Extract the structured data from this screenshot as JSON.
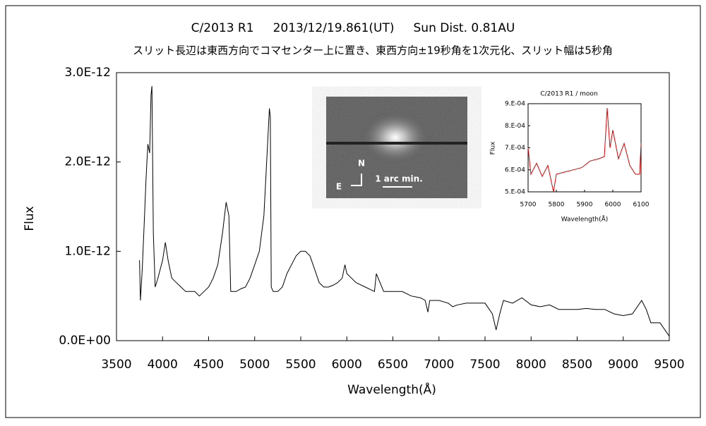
{
  "chart_data": [
    {
      "type": "line",
      "title": "C/2013 R1     2013/12/19.861(UT)     Sun Dist. 0.81AU",
      "subtitle": "スリット長辺は東西方向でコマセンター上に置き、東西方向±19秒角を1次元化、スリット幅は5秒角",
      "xlabel": "Wavelength(Å)",
      "ylabel": "Flux",
      "color": "#000000",
      "xlim": [
        3500,
        9500
      ],
      "xticks": [
        3500,
        4000,
        4500,
        5000,
        5500,
        6000,
        6500,
        7000,
        7500,
        8000,
        8500,
        9000,
        9500
      ],
      "ylim": [
        0,
        3e-12
      ],
      "yticks": [
        {
          "value": 0,
          "label": "0.0E+00"
        },
        {
          "value": 1e-12,
          "label": "1.0E-12"
        },
        {
          "value": 2e-12,
          "label": "2.0E-12"
        },
        {
          "value": 3e-12,
          "label": "3.0E-12"
        }
      ],
      "x": [
        3750,
        3760,
        3780,
        3800,
        3820,
        3840,
        3860,
        3875,
        3885,
        3900,
        3920,
        3950,
        4000,
        4030,
        4060,
        4100,
        4150,
        4200,
        4250,
        4300,
        4350,
        4400,
        4450,
        4500,
        4550,
        4600,
        4650,
        4690,
        4720,
        4740,
        4800,
        4850,
        4900,
        4950,
        5000,
        5050,
        5100,
        5130,
        5160,
        5170,
        5180,
        5200,
        5250,
        5300,
        5350,
        5400,
        5450,
        5500,
        5550,
        5600,
        5650,
        5700,
        5750,
        5800,
        5850,
        5900,
        5950,
        5980,
        6000,
        6050,
        6100,
        6200,
        6300,
        6320,
        6400,
        6500,
        6600,
        6700,
        6800,
        6850,
        6880,
        6900,
        7000,
        7100,
        7150,
        7200,
        7300,
        7400,
        7500,
        7580,
        7620,
        7660,
        7700,
        7800,
        7900,
        8000,
        8100,
        8200,
        8300,
        8400,
        8500,
        8600,
        8700,
        8800,
        8900,
        9000,
        9100,
        9200,
        9250,
        9300,
        9400,
        9500
      ],
      "values": [
        9e-13,
        4.5e-13,
        8e-13,
        1.3e-12,
        1.8e-12,
        2.2e-12,
        2.1e-12,
        2.75e-12,
        2.85e-12,
        1.2e-12,
        6e-13,
        7e-13,
        9e-13,
        1.1e-12,
        9e-13,
        7e-13,
        6.5e-13,
        6e-13,
        5.5e-13,
        5.5e-13,
        5.5e-13,
        5e-13,
        5.5e-13,
        6e-13,
        7e-13,
        8.5e-13,
        1.2e-12,
        1.55e-12,
        1.4e-12,
        5.5e-13,
        5.5e-13,
        5.8e-13,
        6e-13,
        7e-13,
        8.5e-13,
        1e-12,
        1.4e-12,
        2e-12,
        2.6e-12,
        2.5e-12,
        6e-13,
        5.5e-13,
        5.5e-13,
        6e-13,
        7.5e-13,
        8.5e-13,
        9.5e-13,
        1e-12,
        1e-12,
        9.5e-13,
        8e-13,
        6.5e-13,
        6e-13,
        6e-13,
        6.2e-13,
        6.5e-13,
        7e-13,
        8.5e-13,
        7.5e-13,
        7e-13,
        6.5e-13,
        6e-13,
        5.5e-13,
        7.5e-13,
        5.5e-13,
        5.5e-13,
        5.5e-13,
        5e-13,
        4.8e-13,
        4.5e-13,
        3.2e-13,
        4.5e-13,
        4.5e-13,
        4.2e-13,
        3.8e-13,
        4e-13,
        4.2e-13,
        4.2e-13,
        4.2e-13,
        3e-13,
        1.2e-13,
        3e-13,
        4.5e-13,
        4.2e-13,
        4.8e-13,
        4e-13,
        3.8e-13,
        4e-13,
        3.5e-13,
        3.5e-13,
        3.5e-13,
        3.6e-13,
        3.5e-13,
        3.5e-13,
        3e-13,
        2.8e-13,
        3e-13,
        4.5e-13,
        3.5e-13,
        2e-13,
        2e-13,
        5e-14
      ]
    },
    {
      "type": "line",
      "title": "C/2013 R1 / moon",
      "xlabel": "Wavelength(Å)",
      "ylabel": "Flux",
      "color": "#dd0000",
      "xlim": [
        5700,
        6100
      ],
      "xticks": [
        5700,
        5800,
        5900,
        6000,
        6100
      ],
      "ylim": [
        0.0005,
        0.0009
      ],
      "yticks": [
        {
          "value": 0.0005,
          "label": "5.E-04"
        },
        {
          "value": 0.0006,
          "label": "6.E-04"
        },
        {
          "value": 0.0007,
          "label": "7.E-04"
        },
        {
          "value": 0.0008,
          "label": "8.E-04"
        },
        {
          "value": 0.0009,
          "label": "9.E-04"
        }
      ],
      "x": [
        5700,
        5710,
        5730,
        5750,
        5770,
        5790,
        5800,
        5830,
        5860,
        5890,
        5920,
        5950,
        5970,
        5980,
        5990,
        6000,
        6020,
        6040,
        6060,
        6080,
        6095,
        6100
      ],
      "values": [
        0.0007,
        0.00058,
        0.00063,
        0.00057,
        0.00062,
        0.0005,
        0.00058,
        0.00059,
        0.0006,
        0.00061,
        0.00064,
        0.00065,
        0.00066,
        0.00088,
        0.0007,
        0.00078,
        0.00065,
        0.00072,
        0.00062,
        0.00058,
        0.00058,
        0.00072
      ]
    }
  ],
  "inset_image": {
    "north": "N",
    "east": "E",
    "scale": "1 arc min."
  }
}
